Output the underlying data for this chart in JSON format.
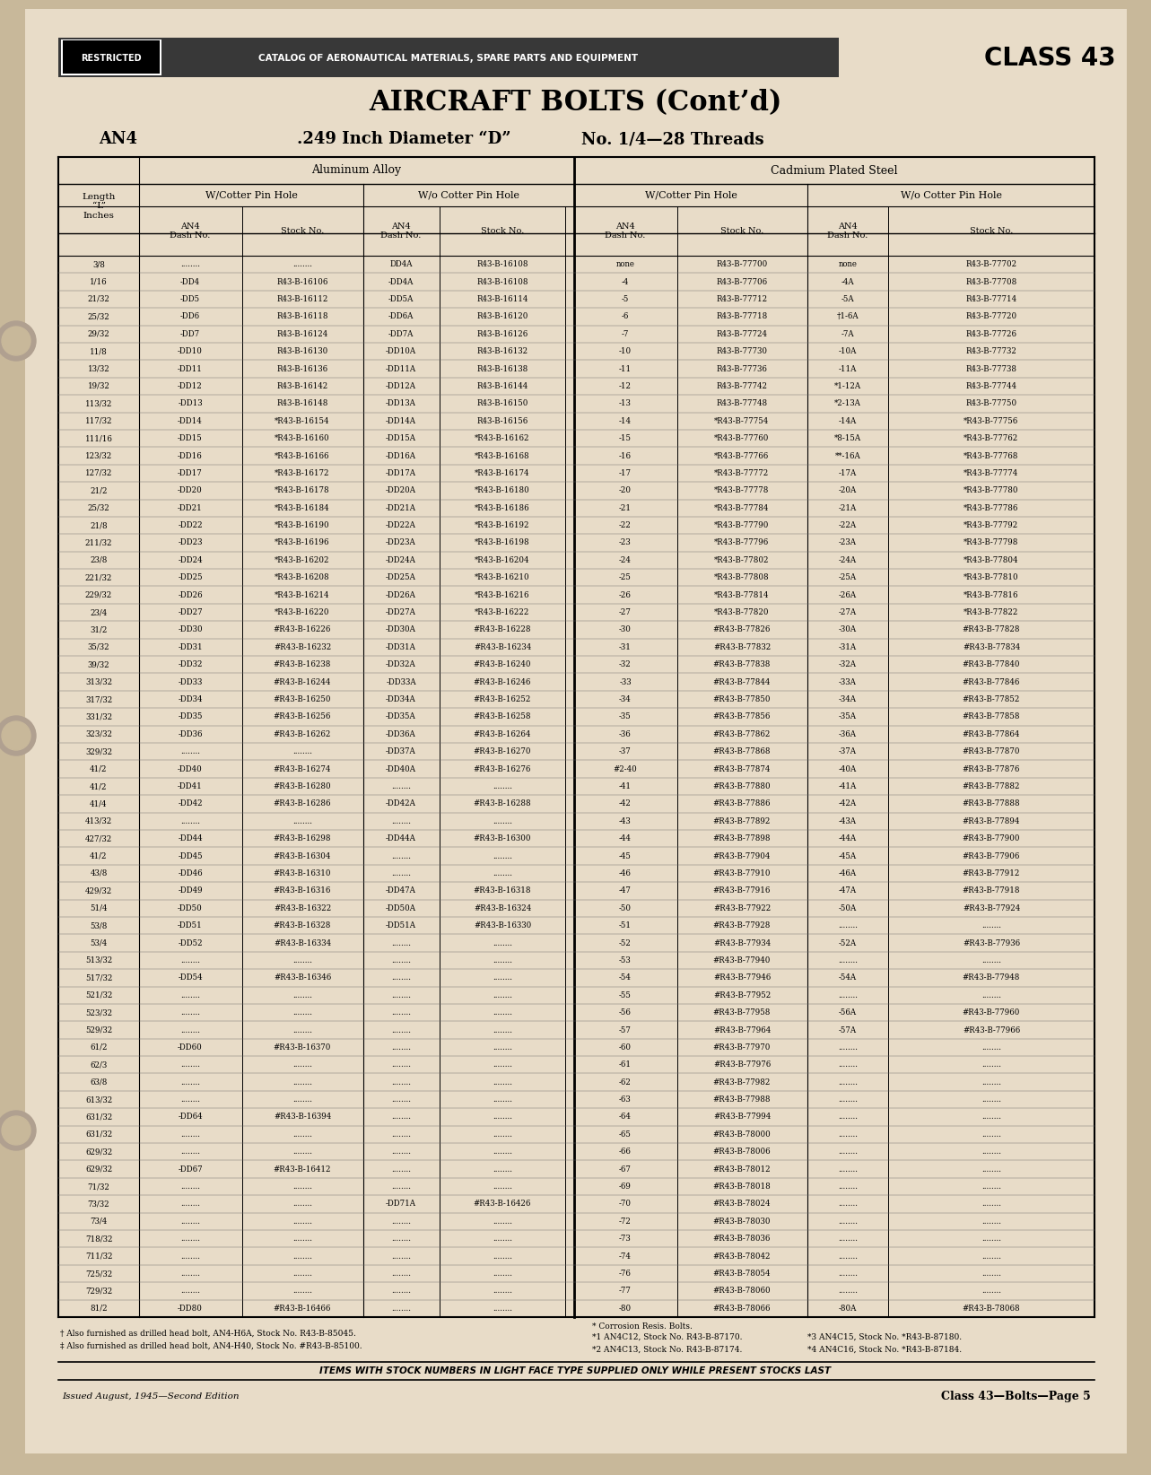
{
  "bg_color": "#c8b89a",
  "paper_color": "#e8dcc8",
  "title_main": "AIRCRAFT BOLTS (Cont’d)",
  "an4_label": "AN4",
  "subtitle_mid": ".249 Inch Diameter “D”",
  "subtitle_right": "No. 1/4—28 Threads",
  "header_restricted": "RESTRICTED",
  "header_catalog": "CATALOG OF AERONAUTICAL MATERIALS, SPARE PARTS AND EQUIPMENT",
  "header_class": "CLASS 43",
  "rows": [
    [
      "3/8",
      "........",
      "........",
      "DD4A",
      "R43-B-16108",
      "none",
      "R43-B-77700",
      "none",
      "R43-B-77702"
    ],
    [
      "1/16",
      "-DD4",
      "R43-B-16106",
      "-DD4A",
      "R43-B-16108",
      "-4",
      "R43-B-77706",
      "-4A",
      "R43-B-77708"
    ],
    [
      "21/32",
      "-DD5",
      "R43-B-16112",
      "-DD5A",
      "R43-B-16114",
      "-5",
      "R43-B-77712",
      "-5A",
      "R43-B-77714"
    ],
    [
      "25/32",
      "-DD6",
      "R43-B-16118",
      "-DD6A",
      "R43-B-16120",
      "-6",
      "R43-B-77718",
      "†1-6A",
      "R43-B-77720"
    ],
    [
      "29/32",
      "-DD7",
      "R43-B-16124",
      "-DD7A",
      "R43-B-16126",
      "-7",
      "R43-B-77724",
      "-7A",
      "R43-B-77726"
    ],
    [
      "11/8",
      "-DD10",
      "R43-B-16130",
      "-DD10A",
      "R43-B-16132",
      "-10",
      "R43-B-77730",
      "-10A",
      "R43-B-77732"
    ],
    [
      "13/32",
      "-DD11",
      "R43-B-16136",
      "-DD11A",
      "R43-B-16138",
      "-11",
      "R43-B-77736",
      "-11A",
      "R43-B-77738"
    ],
    [
      "19/32",
      "-DD12",
      "R43-B-16142",
      "-DD12A",
      "R43-B-16144",
      "-12",
      "R43-B-77742",
      "*1-12A",
      "R43-B-77744"
    ],
    [
      "113/32",
      "-DD13",
      "R43-B-16148",
      "-DD13A",
      "R43-B-16150",
      "-13",
      "R43-B-77748",
      "*2-13A",
      "R43-B-77750"
    ],
    [
      "117/32",
      "-DD14",
      "*R43-B-16154",
      "-DD14A",
      "R43-B-16156",
      "-14",
      "*R43-B-77754",
      "-14A",
      "*R43-B-77756"
    ],
    [
      "111/16",
      "-DD15",
      "*R43-B-16160",
      "-DD15A",
      "*R43-B-16162",
      "-15",
      "*R43-B-77760",
      "*8-15A",
      "*R43-B-77762"
    ],
    [
      "123/32",
      "-DD16",
      "*R43-B-16166",
      "-DD16A",
      "*R43-B-16168",
      "-16",
      "*R43-B-77766",
      "**-16A",
      "*R43-B-77768"
    ],
    [
      "127/32",
      "-DD17",
      "*R43-B-16172",
      "-DD17A",
      "*R43-B-16174",
      "-17",
      "*R43-B-77772",
      "-17A",
      "*R43-B-77774"
    ],
    [
      "21/2",
      "-DD20",
      "*R43-B-16178",
      "-DD20A",
      "*R43-B-16180",
      "-20",
      "*R43-B-77778",
      "-20A",
      "*R43-B-77780"
    ],
    [
      "25/32",
      "-DD21",
      "*R43-B-16184",
      "-DD21A",
      "*R43-B-16186",
      "-21",
      "*R43-B-77784",
      "-21A",
      "*R43-B-77786"
    ],
    [
      "21/8",
      "-DD22",
      "*R43-B-16190",
      "-DD22A",
      "*R43-B-16192",
      "-22",
      "*R43-B-77790",
      "-22A",
      "*R43-B-77792"
    ],
    [
      "211/32",
      "-DD23",
      "*R43-B-16196",
      "-DD23A",
      "*R43-B-16198",
      "-23",
      "*R43-B-77796",
      "-23A",
      "*R43-B-77798"
    ],
    [
      "23/8",
      "-DD24",
      "*R43-B-16202",
      "-DD24A",
      "*R43-B-16204",
      "-24",
      "*R43-B-77802",
      "-24A",
      "*R43-B-77804"
    ],
    [
      "221/32",
      "-DD25",
      "*R43-B-16208",
      "-DD25A",
      "*R43-B-16210",
      "-25",
      "*R43-B-77808",
      "-25A",
      "*R43-B-77810"
    ],
    [
      "229/32",
      "-DD26",
      "*R43-B-16214",
      "-DD26A",
      "*R43-B-16216",
      "-26",
      "*R43-B-77814",
      "-26A",
      "*R43-B-77816"
    ],
    [
      "23/4",
      "-DD27",
      "*R43-B-16220",
      "-DD27A",
      "*R43-B-16222",
      "-27",
      "*R43-B-77820",
      "-27A",
      "*R43-B-77822"
    ],
    [
      "31/2",
      "-DD30",
      "#R43-B-16226",
      "-DD30A",
      "#R43-B-16228",
      "-30",
      "#R43-B-77826",
      "-30A",
      "#R43-B-77828"
    ],
    [
      "35/32",
      "-DD31",
      "#R43-B-16232",
      "-DD31A",
      "#R43-B-16234",
      "-31",
      "#R43-B-77832",
      "-31A",
      "#R43-B-77834"
    ],
    [
      "39/32",
      "-DD32",
      "#R43-B-16238",
      "-DD32A",
      "#R43-B-16240",
      "-32",
      "#R43-B-77838",
      "-32A",
      "#R43-B-77840"
    ],
    [
      "313/32",
      "-DD33",
      "#R43-B-16244",
      "-DD33A",
      "#R43-B-16246",
      "-33",
      "#R43-B-77844",
      "-33A",
      "#R43-B-77846"
    ],
    [
      "317/32",
      "-DD34",
      "#R43-B-16250",
      "-DD34A",
      "#R43-B-16252",
      "-34",
      "#R43-B-77850",
      "-34A",
      "#R43-B-77852"
    ],
    [
      "331/32",
      "-DD35",
      "#R43-B-16256",
      "-DD35A",
      "#R43-B-16258",
      "-35",
      "#R43-B-77856",
      "-35A",
      "#R43-B-77858"
    ],
    [
      "323/32",
      "-DD36",
      "#R43-B-16262",
      "-DD36A",
      "#R43-B-16264",
      "-36",
      "#R43-B-77862",
      "-36A",
      "#R43-B-77864"
    ],
    [
      "329/32",
      "........",
      "........",
      "-DD37A",
      "#R43-B-16270",
      "-37",
      "#R43-B-77868",
      "-37A",
      "#R43-B-77870"
    ],
    [
      "41/2",
      "-DD40",
      "#R43-B-16274",
      "-DD40A",
      "#R43-B-16276",
      "#2-40",
      "#R43-B-77874",
      "-40A",
      "#R43-B-77876"
    ],
    [
      "41/2",
      "-DD41",
      "#R43-B-16280",
      "........",
      "........",
      "-41",
      "#R43-B-77880",
      "-41A",
      "#R43-B-77882"
    ],
    [
      "41/4",
      "-DD42",
      "#R43-B-16286",
      "-DD42A",
      "#R43-B-16288",
      "-42",
      "#R43-B-77886",
      "-42A",
      "#R43-B-77888"
    ],
    [
      "413/32",
      "........",
      "........",
      "........",
      "........",
      "-43",
      "#R43-B-77892",
      "-43A",
      "#R43-B-77894"
    ],
    [
      "427/32",
      "-DD44",
      "#R43-B-16298",
      "-DD44A",
      "#R43-B-16300",
      "-44",
      "#R43-B-77898",
      "-44A",
      "#R43-B-77900"
    ],
    [
      "41/2",
      "-DD45",
      "#R43-B-16304",
      "........",
      "........",
      "-45",
      "#R43-B-77904",
      "-45A",
      "#R43-B-77906"
    ],
    [
      "43/8",
      "-DD46",
      "#R43-B-16310",
      "........",
      "........",
      "-46",
      "#R43-B-77910",
      "-46A",
      "#R43-B-77912"
    ],
    [
      "429/32",
      "-DD49",
      "#R43-B-16316",
      "-DD47A",
      "#R43-B-16318",
      "-47",
      "#R43-B-77916",
      "-47A",
      "#R43-B-77918"
    ],
    [
      "51/4",
      "-DD50",
      "#R43-B-16322",
      "-DD50A",
      "#R43-B-16324",
      "-50",
      "#R43-B-77922",
      "-50A",
      "#R43-B-77924"
    ],
    [
      "53/8",
      "-DD51",
      "#R43-B-16328",
      "-DD51A",
      "#R43-B-16330",
      "-51",
      "#R43-B-77928",
      "........",
      "........"
    ],
    [
      "53/4",
      "-DD52",
      "#R43-B-16334",
      "........",
      "........",
      "-52",
      "#R43-B-77934",
      "-52A",
      "#R43-B-77936"
    ],
    [
      "513/32",
      "........",
      "........",
      "........",
      "........",
      "-53",
      "#R43-B-77940",
      "........",
      "........"
    ],
    [
      "517/32",
      "-DD54",
      "#R43-B-16346",
      "........",
      "........",
      "-54",
      "#R43-B-77946",
      "-54A",
      "#R43-B-77948"
    ],
    [
      "521/32",
      "........",
      "........",
      "........",
      "........",
      "-55",
      "#R43-B-77952",
      "........",
      "........"
    ],
    [
      "523/32",
      "........",
      "........",
      "........",
      "........",
      "-56",
      "#R43-B-77958",
      "-56A",
      "#R43-B-77960"
    ],
    [
      "529/32",
      "........",
      "........",
      "........",
      "........",
      "-57",
      "#R43-B-77964",
      "-57A",
      "#R43-B-77966"
    ],
    [
      "61/2",
      "-DD60",
      "#R43-B-16370",
      "........",
      "........",
      "-60",
      "#R43-B-77970",
      "........",
      "........"
    ],
    [
      "62/3",
      "........",
      "........",
      "........",
      "........",
      "-61",
      "#R43-B-77976",
      "........",
      "........"
    ],
    [
      "63/8",
      "........",
      "........",
      "........",
      "........",
      "-62",
      "#R43-B-77982",
      "........",
      "........"
    ],
    [
      "613/32",
      "........",
      "........",
      "........",
      "........",
      "-63",
      "#R43-B-77988",
      "........",
      "........"
    ],
    [
      "631/32",
      "-DD64",
      "#R43-B-16394",
      "........",
      "........",
      "-64",
      "#R43-B-77994",
      "........",
      "........"
    ],
    [
      "631/32",
      "........",
      "........",
      "........",
      "........",
      "-65",
      "#R43-B-78000",
      "........",
      "........"
    ],
    [
      "629/32",
      "........",
      "........",
      "........",
      "........",
      "-66",
      "#R43-B-78006",
      "........",
      "........"
    ],
    [
      "629/32",
      "-DD67",
      "#R43-B-16412",
      "........",
      "........",
      "-67",
      "#R43-B-78012",
      "........",
      "........"
    ],
    [
      "71/32",
      "........",
      "........",
      "........",
      "........",
      "-69",
      "#R43-B-78018",
      "........",
      "........"
    ],
    [
      "73/32",
      "........",
      "........",
      "-DD71A",
      "#R43-B-16426",
      "-70",
      "#R43-B-78024",
      "........",
      "........"
    ],
    [
      "73/4",
      "........",
      "........",
      "........",
      "........",
      "-72",
      "#R43-B-78030",
      "........",
      "........"
    ],
    [
      "718/32",
      "........",
      "........",
      "........",
      "........",
      "-73",
      "#R43-B-78036",
      "........",
      "........"
    ],
    [
      "711/32",
      "........",
      "........",
      "........",
      "........",
      "-74",
      "#R43-B-78042",
      "........",
      "........"
    ],
    [
      "725/32",
      "........",
      "........",
      "........",
      "........",
      "-76",
      "#R43-B-78054",
      "........",
      "........"
    ],
    [
      "729/32",
      "........",
      "........",
      "........",
      "........",
      "-77",
      "#R43-B-78060",
      "........",
      "........"
    ],
    [
      "81/2",
      "-DD80",
      "#R43-B-16466",
      "........",
      "........",
      "-80",
      "#R43-B-78066",
      "-80A",
      "#R43-B-78068"
    ]
  ],
  "footnote1": "† Also furnished as drilled head bolt, AN4-H6A, Stock No. R43-B-85045.",
  "footnote2": "‡ Also furnished as drilled head bolt, AN4-H40, Stock No. #R43-B-85100.",
  "footnote3": "* Corrosion Resis. Bolts.",
  "footnote4a": "*1 AN4C12, Stock No. R43-B-87170.",
  "footnote4b": "*3 AN4C15, Stock No. *R43-B-87180.",
  "footnote5a": "*2 AN4C13, Stock No. R43-B-87174.",
  "footnote5b": "*4 AN4C16, Stock No. *R43-B-87184.",
  "bottom_note": "ITEMS WITH STOCK NUMBERS IN LIGHT FACE TYPE SUPPLIED ONLY WHILE PRESENT STOCKS LAST",
  "issued": "Issued August, 1945—Second Edition",
  "page_class": "Class 43—Bolts—Page 5"
}
